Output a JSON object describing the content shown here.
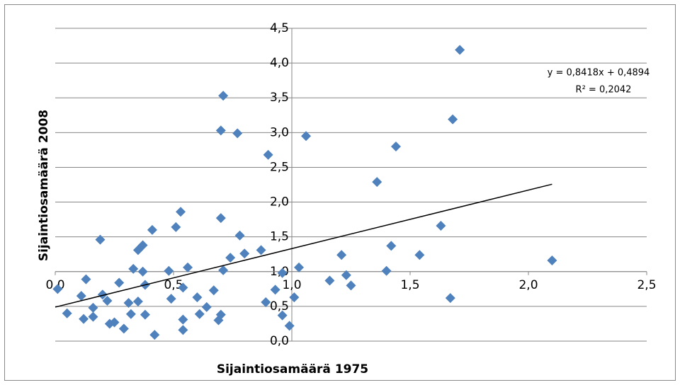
{
  "chart_data": {
    "type": "scatter",
    "x_label": "Sijaintiosamäärä 1975",
    "y_label": "Sijaintiosamäärä 2008",
    "series": [
      {
        "color": "#4f81bd",
        "x": [
          0.01,
          0.05,
          0.11,
          0.13,
          0.12,
          0.16,
          0.16,
          0.19,
          0.2,
          0.22,
          0.23,
          0.25,
          0.27,
          0.29,
          0.31,
          0.32,
          0.33,
          0.35,
          0.35,
          0.37,
          0.37,
          0.38,
          0.38,
          0.41,
          0.42,
          0.48,
          0.49,
          0.51,
          0.53,
          0.54,
          0.54,
          0.54,
          0.56,
          0.6,
          0.61,
          0.64,
          0.67,
          0.69,
          0.7,
          0.7,
          0.71,
          0.71,
          0.7,
          0.74,
          0.77,
          0.78,
          0.8,
          0.87,
          0.89,
          0.9,
          0.93,
          0.96,
          0.96,
          0.99,
          1.01,
          1.03,
          1.06,
          1.16,
          1.21,
          1.23,
          1.25,
          1.36,
          1.4,
          1.42,
          1.44,
          1.54,
          1.63,
          1.67,
          1.68,
          1.71,
          2.1
        ],
        "values": [
          0.75,
          0.4,
          0.65,
          0.89,
          0.32,
          0.48,
          0.35,
          1.46,
          0.67,
          0.58,
          0.25,
          0.27,
          0.84,
          0.18,
          0.55,
          0.39,
          1.04,
          0.57,
          1.31,
          1.38,
          1.0,
          0.81,
          0.38,
          1.6,
          0.09,
          1.01,
          0.61,
          1.64,
          1.86,
          0.31,
          0.77,
          0.16,
          1.06,
          0.63,
          0.39,
          0.49,
          0.73,
          0.3,
          0.38,
          1.77,
          1.02,
          3.53,
          3.03,
          1.2,
          2.99,
          1.52,
          1.26,
          1.31,
          0.56,
          2.68,
          0.74,
          0.98,
          0.37,
          0.22,
          0.63,
          1.06,
          2.95,
          0.87,
          1.24,
          0.95,
          0.8,
          2.29,
          1.01,
          1.37,
          2.8,
          1.24,
          1.66,
          0.62,
          3.19,
          4.19,
          1.16
        ]
      }
    ],
    "trendline": {
      "slope": 0.8418,
      "intercept": 0.4894,
      "equation": "y = 0,8418x + 0,4894",
      "r2": 0.2042,
      "r2_label": "R² = 0,2042",
      "color": "#000000"
    },
    "xlim": [
      0,
      2.5
    ],
    "ylim": [
      0,
      4.5
    ],
    "axis_cross": [
      1,
      1
    ],
    "xticks": [
      {
        "value": 0,
        "label": "0,0"
      },
      {
        "value": 0.5,
        "label": "0,5"
      },
      {
        "value": 1,
        "label": "1,0"
      },
      {
        "value": 1.5,
        "label": "1,5"
      },
      {
        "value": 2,
        "label": "2,0"
      },
      {
        "value": 2.5,
        "label": "2,5"
      }
    ],
    "yticks": [
      {
        "value": 0,
        "label": "0,0"
      },
      {
        "value": 0.5,
        "label": "0,5"
      },
      {
        "value": 1,
        "label": "1,0"
      },
      {
        "value": 1.5,
        "label": "1,5"
      },
      {
        "value": 2,
        "label": "2,0"
      },
      {
        "value": 2.5,
        "label": "2,5"
      },
      {
        "value": 3,
        "label": "3,0"
      },
      {
        "value": 3.5,
        "label": "3,5"
      },
      {
        "value": 4,
        "label": "4,0"
      },
      {
        "value": 4.5,
        "label": "4,5"
      }
    ],
    "grid": true
  }
}
